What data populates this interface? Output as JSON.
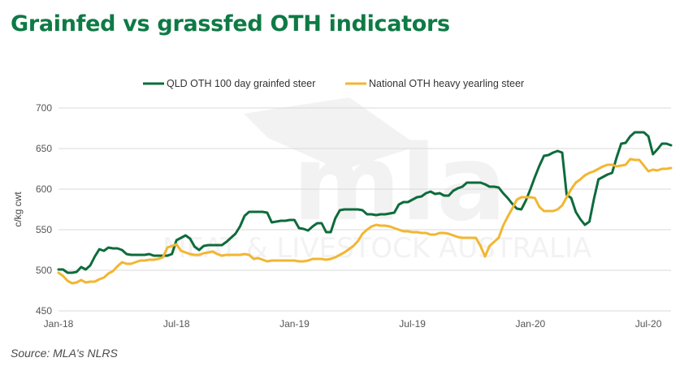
{
  "title": "Grainfed vs grassfed OTH indicators",
  "source": "Source: MLA's NLRS",
  "watermark": {
    "text": "MEAT & LIVESTOCK AUSTRALIA",
    "logo": "mla"
  },
  "chart_data": {
    "type": "line",
    "title": "Grainfed vs grassfed OTH indicators",
    "xlabel": "",
    "ylabel": "c/kg cwt",
    "ylim": [
      450,
      700
    ],
    "yticks": [
      450,
      500,
      550,
      600,
      650,
      700
    ],
    "xlim": [
      0,
      135
    ],
    "xticks": [
      {
        "label": "Jan-18",
        "x": 0
      },
      {
        "label": "Jul-18",
        "x": 26
      },
      {
        "label": "Jan-19",
        "x": 52
      },
      {
        "label": "Jul-19",
        "x": 78
      },
      {
        "label": "Jan-20",
        "x": 104
      },
      {
        "label": "Jul-20",
        "x": 130
      }
    ],
    "x_unit": "weeks from Jan-18",
    "grid": "horizontal",
    "legend_position": "top",
    "series": [
      {
        "name": "QLD OTH 100 day grainfed steer",
        "color": "#0e6b3c",
        "points": [
          [
            0,
            501
          ],
          [
            1,
            501
          ],
          [
            2,
            497
          ],
          [
            3,
            497
          ],
          [
            4,
            498
          ],
          [
            5,
            504
          ],
          [
            6,
            501
          ],
          [
            7,
            506
          ],
          [
            8,
            517
          ],
          [
            9,
            526
          ],
          [
            10,
            524
          ],
          [
            11,
            528
          ],
          [
            12,
            527
          ],
          [
            13,
            527
          ],
          [
            14,
            525
          ],
          [
            15,
            520
          ],
          [
            16,
            519
          ],
          [
            17,
            519
          ],
          [
            18,
            519
          ],
          [
            19,
            519
          ],
          [
            20,
            520
          ],
          [
            21,
            518
          ],
          [
            22,
            518
          ],
          [
            23,
            518
          ],
          [
            24,
            518
          ],
          [
            25,
            520
          ],
          [
            26,
            537
          ],
          [
            27,
            540
          ],
          [
            28,
            543
          ],
          [
            29,
            539
          ],
          [
            30,
            529
          ],
          [
            31,
            525
          ],
          [
            32,
            530
          ],
          [
            33,
            531
          ],
          [
            34,
            531
          ],
          [
            35,
            531
          ],
          [
            36,
            531
          ],
          [
            37,
            535
          ],
          [
            38,
            540
          ],
          [
            39,
            545
          ],
          [
            40,
            554
          ],
          [
            41,
            567
          ],
          [
            42,
            572
          ],
          [
            43,
            572
          ],
          [
            44,
            572
          ],
          [
            45,
            572
          ],
          [
            46,
            571
          ],
          [
            47,
            559
          ],
          [
            48,
            560
          ],
          [
            49,
            561
          ],
          [
            50,
            561
          ],
          [
            51,
            562
          ],
          [
            52,
            562
          ],
          [
            53,
            552
          ],
          [
            54,
            551
          ],
          [
            55,
            549
          ],
          [
            56,
            554
          ],
          [
            57,
            558
          ],
          [
            58,
            558
          ],
          [
            59,
            547
          ],
          [
            60,
            547
          ],
          [
            61,
            564
          ],
          [
            62,
            574
          ],
          [
            63,
            575
          ],
          [
            64,
            575
          ],
          [
            65,
            575
          ],
          [
            66,
            575
          ],
          [
            67,
            574
          ],
          [
            68,
            569
          ],
          [
            69,
            569
          ],
          [
            70,
            568
          ],
          [
            71,
            569
          ],
          [
            72,
            569
          ],
          [
            73,
            570
          ],
          [
            74,
            571
          ],
          [
            75,
            581
          ],
          [
            76,
            584
          ],
          [
            77,
            584
          ],
          [
            78,
            587
          ],
          [
            79,
            590
          ],
          [
            80,
            591
          ],
          [
            81,
            595
          ],
          [
            82,
            597
          ],
          [
            83,
            594
          ],
          [
            84,
            595
          ],
          [
            85,
            592
          ],
          [
            86,
            592
          ],
          [
            87,
            598
          ],
          [
            88,
            601
          ],
          [
            89,
            603
          ],
          [
            90,
            608
          ],
          [
            91,
            608
          ],
          [
            92,
            608
          ],
          [
            93,
            608
          ],
          [
            94,
            606
          ],
          [
            95,
            603
          ],
          [
            96,
            603
          ],
          [
            97,
            602
          ],
          [
            98,
            595
          ],
          [
            99,
            589
          ],
          [
            100,
            582
          ],
          [
            101,
            576
          ],
          [
            102,
            575
          ],
          [
            103,
            586
          ],
          [
            104,
            600
          ],
          [
            105,
            615
          ],
          [
            106,
            629
          ],
          [
            107,
            641
          ],
          [
            108,
            642
          ],
          [
            109,
            645
          ],
          [
            110,
            647
          ],
          [
            111,
            645
          ],
          [
            112,
            593
          ],
          [
            113,
            589
          ],
          [
            114,
            572
          ],
          [
            115,
            563
          ],
          [
            116,
            556
          ],
          [
            117,
            560
          ],
          [
            118,
            588
          ],
          [
            119,
            612
          ],
          [
            120,
            615
          ],
          [
            121,
            618
          ],
          [
            122,
            620
          ],
          [
            123,
            639
          ],
          [
            124,
            656
          ],
          [
            125,
            657
          ],
          [
            126,
            665
          ],
          [
            127,
            670
          ],
          [
            128,
            670
          ],
          [
            129,
            670
          ],
          [
            130,
            665
          ],
          [
            131,
            643
          ],
          [
            132,
            649
          ],
          [
            133,
            656
          ],
          [
            134,
            656
          ],
          [
            135,
            654
          ]
        ]
      },
      {
        "name": "National OTH heavy yearling steer",
        "color": "#f2b632",
        "points": [
          [
            0,
            497
          ],
          [
            1,
            493
          ],
          [
            2,
            487
          ],
          [
            3,
            484
          ],
          [
            4,
            485
          ],
          [
            5,
            488
          ],
          [
            6,
            485
          ],
          [
            7,
            486
          ],
          [
            8,
            486
          ],
          [
            9,
            489
          ],
          [
            10,
            491
          ],
          [
            11,
            496
          ],
          [
            12,
            499
          ],
          [
            13,
            505
          ],
          [
            14,
            510
          ],
          [
            15,
            508
          ],
          [
            16,
            508
          ],
          [
            17,
            510
          ],
          [
            18,
            512
          ],
          [
            19,
            512
          ],
          [
            20,
            513
          ],
          [
            21,
            513
          ],
          [
            22,
            514
          ],
          [
            23,
            516
          ],
          [
            24,
            528
          ],
          [
            25,
            530
          ],
          [
            26,
            532
          ],
          [
            27,
            524
          ],
          [
            28,
            522
          ],
          [
            29,
            520
          ],
          [
            30,
            519
          ],
          [
            31,
            519
          ],
          [
            32,
            521
          ],
          [
            33,
            522
          ],
          [
            34,
            523
          ],
          [
            35,
            520
          ],
          [
            36,
            518
          ],
          [
            37,
            519
          ],
          [
            38,
            519
          ],
          [
            39,
            519
          ],
          [
            40,
            519
          ],
          [
            41,
            520
          ],
          [
            42,
            519
          ],
          [
            43,
            514
          ],
          [
            44,
            515
          ],
          [
            45,
            513
          ],
          [
            46,
            511
          ],
          [
            47,
            512
          ],
          [
            48,
            512
          ],
          [
            49,
            512
          ],
          [
            50,
            512
          ],
          [
            51,
            512
          ],
          [
            52,
            512
          ],
          [
            53,
            511
          ],
          [
            54,
            511
          ],
          [
            55,
            512
          ],
          [
            56,
            514
          ],
          [
            57,
            514
          ],
          [
            58,
            514
          ],
          [
            59,
            513
          ],
          [
            60,
            514
          ],
          [
            61,
            516
          ],
          [
            62,
            519
          ],
          [
            63,
            522
          ],
          [
            64,
            526
          ],
          [
            65,
            530
          ],
          [
            66,
            536
          ],
          [
            67,
            545
          ],
          [
            68,
            550
          ],
          [
            69,
            554
          ],
          [
            70,
            556
          ],
          [
            71,
            555
          ],
          [
            72,
            555
          ],
          [
            73,
            554
          ],
          [
            74,
            552
          ],
          [
            75,
            550
          ],
          [
            76,
            548
          ],
          [
            77,
            548
          ],
          [
            78,
            547
          ],
          [
            79,
            547
          ],
          [
            80,
            546
          ],
          [
            81,
            546
          ],
          [
            82,
            544
          ],
          [
            83,
            544
          ],
          [
            84,
            546
          ],
          [
            85,
            546
          ],
          [
            86,
            545
          ],
          [
            87,
            543
          ],
          [
            88,
            541
          ],
          [
            89,
            540
          ],
          [
            90,
            540
          ],
          [
            91,
            540
          ],
          [
            92,
            540
          ],
          [
            93,
            530
          ],
          [
            94,
            517
          ],
          [
            95,
            530
          ],
          [
            96,
            535
          ],
          [
            97,
            540
          ],
          [
            98,
            555
          ],
          [
            99,
            566
          ],
          [
            100,
            576
          ],
          [
            101,
            587
          ],
          [
            102,
            590
          ],
          [
            103,
            590
          ],
          [
            104,
            590
          ],
          [
            105,
            589
          ],
          [
            106,
            578
          ],
          [
            107,
            573
          ],
          [
            108,
            573
          ],
          [
            109,
            573
          ],
          [
            110,
            575
          ],
          [
            111,
            580
          ],
          [
            112,
            590
          ],
          [
            113,
            600
          ],
          [
            114,
            608
          ],
          [
            115,
            612
          ],
          [
            116,
            617
          ],
          [
            117,
            620
          ],
          [
            118,
            622
          ],
          [
            119,
            625
          ],
          [
            120,
            628
          ],
          [
            121,
            630
          ],
          [
            122,
            630
          ],
          [
            123,
            628
          ],
          [
            124,
            629
          ],
          [
            125,
            630
          ],
          [
            126,
            637
          ],
          [
            127,
            636
          ],
          [
            128,
            636
          ],
          [
            129,
            629
          ],
          [
            130,
            622
          ],
          [
            131,
            624
          ],
          [
            132,
            623
          ],
          [
            133,
            625
          ],
          [
            134,
            625
          ],
          [
            135,
            626
          ]
        ]
      }
    ]
  }
}
